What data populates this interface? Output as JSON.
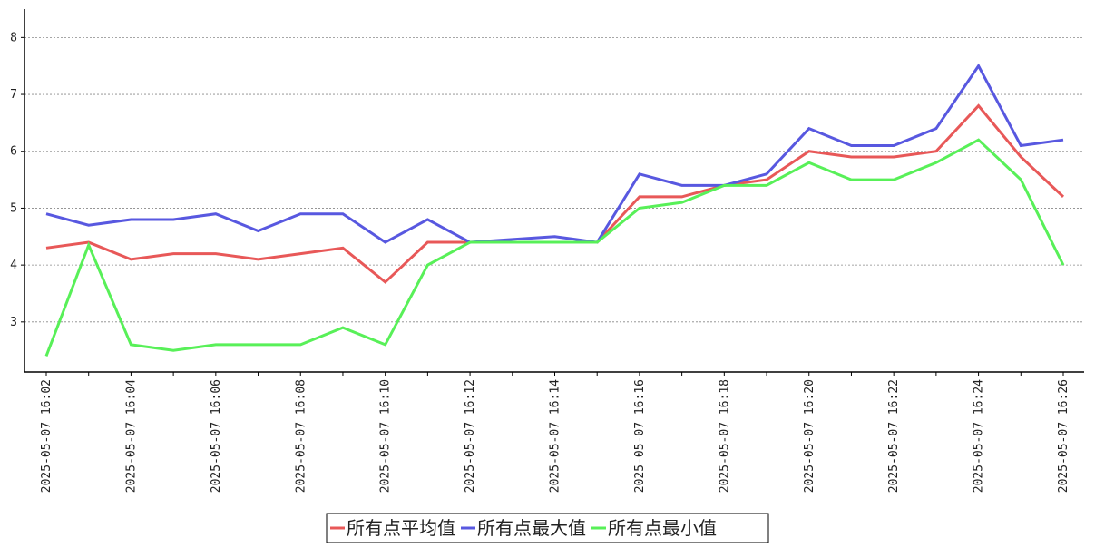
{
  "chart_data": {
    "type": "line",
    "categories": [
      "2025-05-07 16:02",
      null,
      "2025-05-07 16:04",
      null,
      "2025-05-07 16:06",
      null,
      "2025-05-07 16:08",
      null,
      "2025-05-07 16:10",
      null,
      "2025-05-07 16:12",
      null,
      "2025-05-07 16:14",
      null,
      "2025-05-07 16:16",
      null,
      "2025-05-07 16:18",
      null,
      "2025-05-07 16:20",
      null,
      "2025-05-07 16:22",
      null,
      "2025-05-07 16:24",
      null,
      "2025-05-07 16:26"
    ],
    "series": [
      {
        "name": "所有点平均值",
        "color": "#e85858",
        "values": [
          4.3,
          4.4,
          4.1,
          4.2,
          4.2,
          4.1,
          4.2,
          4.3,
          3.7,
          4.4,
          4.4,
          4.4,
          4.4,
          4.4,
          5.2,
          5.2,
          5.4,
          5.5,
          6.0,
          5.9,
          5.9,
          6.0,
          6.8,
          5.9,
          5.2
        ]
      },
      {
        "name": "所有点最大值",
        "color": "#5858e0",
        "values": [
          4.9,
          4.7,
          4.8,
          4.8,
          4.9,
          4.6,
          4.9,
          4.9,
          4.4,
          4.8,
          4.4,
          4.45,
          4.5,
          4.4,
          5.6,
          5.4,
          5.4,
          5.6,
          6.4,
          6.1,
          6.1,
          6.4,
          7.5,
          6.1,
          6.2
        ]
      },
      {
        "name": "所有点最小值",
        "color": "#58f058",
        "values": [
          2.4,
          4.35,
          2.6,
          2.5,
          2.6,
          2.6,
          2.6,
          2.9,
          2.6,
          4.0,
          4.4,
          4.4,
          4.4,
          4.4,
          5.0,
          5.1,
          5.4,
          5.4,
          5.8,
          5.5,
          5.5,
          5.8,
          6.2,
          5.5,
          4.0
        ]
      }
    ],
    "ylim": [
      2.12,
      8.5
    ],
    "yticks": [
      3,
      4,
      5,
      6,
      7,
      8
    ],
    "grid": true,
    "legend": "bottom"
  }
}
